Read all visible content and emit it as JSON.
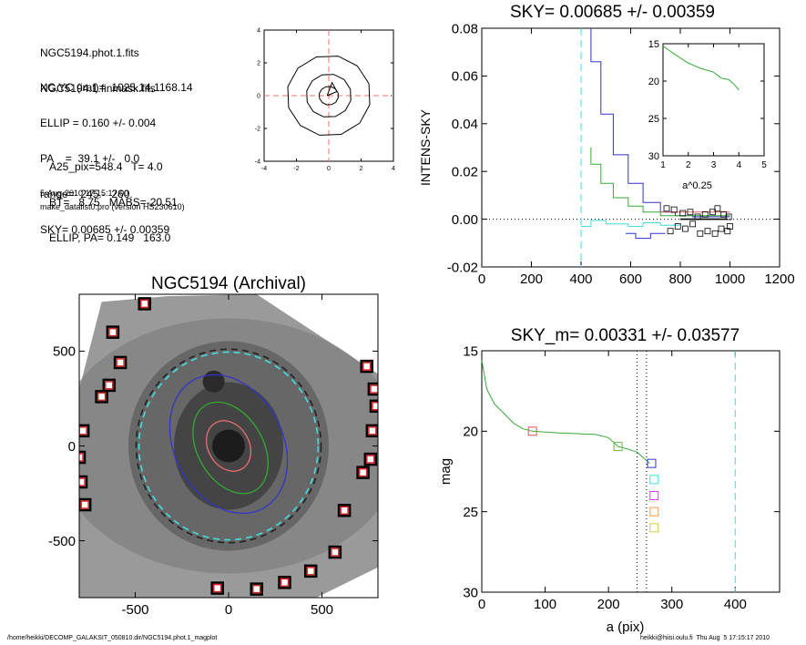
{
  "info": {
    "lines1": [
      "NGC5194.phot.1.fits",
      "NGC5194.1.finmask.fits"
    ],
    "lines2": [
      "XC,YC (iraf)=  1025.14,1168.14",
      "ELLIP = 0.160 +/- 0.004",
      "PA    =  39.1 +/-   0.0",
      "range=  245.-  260.",
      "SKY= 0.00685 +/- 0.00359"
    ],
    "lines3": [
      "A25_pix=548.4   T= 4.0",
      "BT=   8.75   MABS=-20.51",
      "ELLIP, PA= 0.149   163.0"
    ],
    "date": "5-Aug-2010 17:15:17.00",
    "version": "make_datalist0.pro (version HS230610)"
  },
  "footer": {
    "left": "/home/heikki/DECOMP_GALAKSIT_050810.dir/NGC5194.phot.1_magplot",
    "right": "heikki@hiisi.oulu.fi  Thu Aug  5 17:15:17 2010"
  },
  "chart_data": [
    {
      "id": "center_contours",
      "type": "line",
      "title": "",
      "xlim": [
        -4,
        4
      ],
      "ylim": [
        -4,
        4
      ],
      "xticks": [
        -4,
        -2,
        0,
        2,
        4
      ],
      "yticks": [
        -4,
        -2,
        0,
        2,
        4
      ],
      "center": [
        0,
        0
      ],
      "contour_radii": [
        0.6,
        1.4,
        2.6
      ],
      "inner_triangle": [
        [
          -0.1,
          0.0
        ],
        [
          0.5,
          0.25
        ],
        [
          0.2,
          0.8
        ],
        [
          -0.1,
          0.0
        ]
      ],
      "colors": {
        "contour": "#000000",
        "cross": "#e87070"
      }
    },
    {
      "id": "sky_profile",
      "type": "line",
      "title": "SKY= 0.00685 +/- 0.00359",
      "xlabel": "",
      "ylabel": "INTENS-SKY",
      "xlim": [
        0,
        1200
      ],
      "ylim": [
        -0.02,
        0.08
      ],
      "xticks": [
        0,
        200,
        400,
        600,
        800,
        1000,
        1200
      ],
      "yticks": [
        -0.02,
        0.0,
        0.02,
        0.04,
        0.06,
        0.08
      ],
      "ytick_labels": [
        "-0.02",
        "0.00",
        "0.02",
        "0.04",
        "0.06",
        "0.08"
      ],
      "series": [
        {
          "color": "#3333cc",
          "values": [
            [
              440,
              0.08
            ],
            [
              440,
              0.066
            ],
            [
              480,
              0.066
            ],
            [
              480,
              0.044
            ],
            [
              530,
              0.044
            ],
            [
              530,
              0.027
            ],
            [
              590,
              0.027
            ],
            [
              590,
              0.015
            ],
            [
              650,
              0.015
            ],
            [
              650,
              0.007
            ],
            [
              720,
              0.007
            ],
            [
              720,
              0.003
            ],
            [
              780,
              0.003
            ],
            [
              780,
              0.0015
            ],
            [
              850,
              0.0015
            ],
            [
              850,
              0.001
            ],
            [
              1000,
              0.001
            ]
          ]
        },
        {
          "color": "#33aa33",
          "values": [
            [
              440,
              0.03
            ],
            [
              440,
              0.023
            ],
            [
              480,
              0.023
            ],
            [
              480,
              0.015
            ],
            [
              530,
              0.015
            ],
            [
              530,
              0.009
            ],
            [
              590,
              0.009
            ],
            [
              590,
              0.0055
            ],
            [
              650,
              0.0055
            ],
            [
              650,
              0.003
            ],
            [
              720,
              0.003
            ],
            [
              720,
              0.0015
            ],
            [
              1000,
              0.0015
            ]
          ]
        },
        {
          "color": "#dd6666",
          "values": [
            [
              720,
              0.003
            ],
            [
              1000,
              0.003
            ]
          ]
        },
        {
          "color": "#44dddd",
          "values": [
            [
              400,
              -0.003
            ],
            [
              440,
              -0.003
            ],
            [
              440,
              -0.0005
            ],
            [
              500,
              -0.0005
            ],
            [
              500,
              -0.002
            ],
            [
              590,
              -0.002
            ],
            [
              590,
              -0.003
            ],
            [
              650,
              -0.003
            ],
            [
              650,
              -0.0015
            ],
            [
              720,
              -0.0015
            ],
            [
              720,
              -0.0025
            ],
            [
              800,
              -0.0025
            ]
          ]
        },
        {
          "color": "#3333cc",
          "values": [
            [
              580,
              -0.006
            ],
            [
              620,
              -0.006
            ],
            [
              620,
              -0.008
            ],
            [
              680,
              -0.008
            ],
            [
              680,
              -0.006
            ],
            [
              740,
              -0.006
            ]
          ]
        },
        {
          "color": "#000000",
          "values": [
            [
              800,
              0.0
            ],
            [
              990,
              0.0
            ]
          ]
        }
      ],
      "squares": [
        [
          745,
          0.0045
        ],
        [
          775,
          0.004
        ],
        [
          810,
          0.0025
        ],
        [
          840,
          0.003
        ],
        [
          870,
          0.001
        ],
        [
          900,
          0.002
        ],
        [
          930,
          0.003
        ],
        [
          950,
          0.0045
        ],
        [
          975,
          0.002
        ],
        [
          995,
          0.001
        ],
        [
          760,
          -0.005
        ],
        [
          790,
          -0.003
        ],
        [
          820,
          -0.004
        ],
        [
          850,
          -0.002
        ],
        [
          880,
          -0.006
        ],
        [
          910,
          -0.005
        ],
        [
          940,
          -0.006
        ],
        [
          965,
          -0.004
        ],
        [
          990,
          -0.005
        ],
        [
          1000,
          -0.003
        ]
      ],
      "vlines": [
        {
          "x": 400,
          "color": "#44dddd"
        }
      ],
      "hline": {
        "y": 0,
        "style": "dotted"
      }
    },
    {
      "id": "inset_profile",
      "type": "line",
      "xlabel": "a^0.25",
      "ylabel": "",
      "xlim": [
        1,
        5
      ],
      "ylim": [
        15,
        30
      ],
      "xticks": [
        1,
        2,
        3,
        4,
        5
      ],
      "yticks": [
        15,
        20,
        25,
        30
      ],
      "inverted_y": true,
      "series": [
        {
          "color": "#33aa33",
          "values": [
            [
              1.0,
              15.3
            ],
            [
              1.5,
              16.5
            ],
            [
              2.0,
              17.6
            ],
            [
              2.5,
              18.3
            ],
            [
              3.0,
              18.8
            ],
            [
              3.3,
              19.6
            ],
            [
              3.6,
              19.8
            ],
            [
              3.8,
              20.4
            ],
            [
              4.0,
              21.2
            ]
          ]
        }
      ]
    },
    {
      "id": "galaxy_image",
      "type": "scatter",
      "title": "NGC5194 (Archival)",
      "xlim": [
        -800,
        800
      ],
      "ylim": [
        -800,
        800
      ],
      "xticks": [
        -500,
        0,
        500
      ],
      "yticks": [
        -500,
        0,
        500
      ],
      "ellipses": [
        {
          "cx": 0,
          "cy": 0,
          "rx": 495,
          "ry": 510,
          "angle": 0,
          "color": "#222222",
          "dash": true
        },
        {
          "cx": 0,
          "cy": 0,
          "rx": 480,
          "ry": 495,
          "angle": 0,
          "color": "#44dddd",
          "dash": true
        },
        {
          "cx": 0,
          "cy": 10,
          "rx": 290,
          "ry": 385,
          "angle": -28,
          "color": "#3333cc",
          "dash": false
        },
        {
          "cx": 10,
          "cy": -10,
          "rx": 175,
          "ry": 260,
          "angle": -30,
          "color": "#33aa33",
          "dash": false
        },
        {
          "cx": 0,
          "cy": 0,
          "rx": 110,
          "ry": 140,
          "angle": -30,
          "color": "#e87070",
          "dash": false
        }
      ],
      "sky_boxes": [
        [
          -450,
          750
        ],
        [
          -620,
          600
        ],
        [
          -580,
          440
        ],
        [
          -640,
          320
        ],
        [
          -680,
          260
        ],
        [
          -780,
          80
        ],
        [
          -800,
          -60
        ],
        [
          -790,
          -190
        ],
        [
          -770,
          -310
        ],
        [
          -60,
          -750
        ],
        [
          150,
          -755
        ],
        [
          300,
          -720
        ],
        [
          440,
          -660
        ],
        [
          570,
          -560
        ],
        [
          620,
          -340
        ],
        [
          720,
          -140
        ],
        [
          760,
          -70
        ],
        [
          770,
          80
        ],
        [
          790,
          210
        ],
        [
          780,
          300
        ],
        [
          740,
          420
        ]
      ]
    },
    {
      "id": "magnitude_profile",
      "type": "line",
      "title": "SKY_m=  0.00331 +/- 0.03577",
      "xlabel": "a (pix)",
      "ylabel": "mag",
      "xlim": [
        0,
        470
      ],
      "ylim": [
        15,
        30
      ],
      "inverted_y": true,
      "xticks": [
        0,
        100,
        200,
        300,
        400
      ],
      "yticks": [
        15,
        20,
        25,
        30
      ],
      "series": [
        {
          "color": "#33aa33",
          "values": [
            [
              0,
              15.6
            ],
            [
              8,
              17.4
            ],
            [
              20,
              18.3
            ],
            [
              35,
              18.9
            ],
            [
              50,
              19.5
            ],
            [
              65,
              19.85
            ],
            [
              80,
              20.0
            ],
            [
              100,
              20.05
            ],
            [
              120,
              20.1
            ],
            [
              150,
              20.15
            ],
            [
              180,
              20.2
            ],
            [
              200,
              20.4
            ],
            [
              215,
              20.95
            ],
            [
              230,
              21.1
            ],
            [
              245,
              21.3
            ],
            [
              258,
              21.75
            ],
            [
              265,
              22.0
            ]
          ]
        }
      ],
      "markers": [
        {
          "x": 80,
          "y": 20.0,
          "color": "#dd5555"
        },
        {
          "x": 215,
          "y": 20.95,
          "color": "#66bb44"
        },
        {
          "x": 268,
          "y": 22.0,
          "color": "#3333cc"
        },
        {
          "x": 272,
          "y": 23.0,
          "color": "#44dddd"
        },
        {
          "x": 272,
          "y": 24.0,
          "color": "#dd44dd"
        },
        {
          "x": 272,
          "y": 25.0,
          "color": "#ff9944"
        },
        {
          "x": 272,
          "y": 26.0,
          "color": "#cccc44"
        }
      ],
      "vlines": [
        {
          "x": 245,
          "color": "#000000",
          "style": "dotted"
        },
        {
          "x": 260,
          "color": "#000000",
          "style": "dotted"
        },
        {
          "x": 400,
          "color": "#44dddd",
          "style": "dashed"
        }
      ]
    }
  ]
}
